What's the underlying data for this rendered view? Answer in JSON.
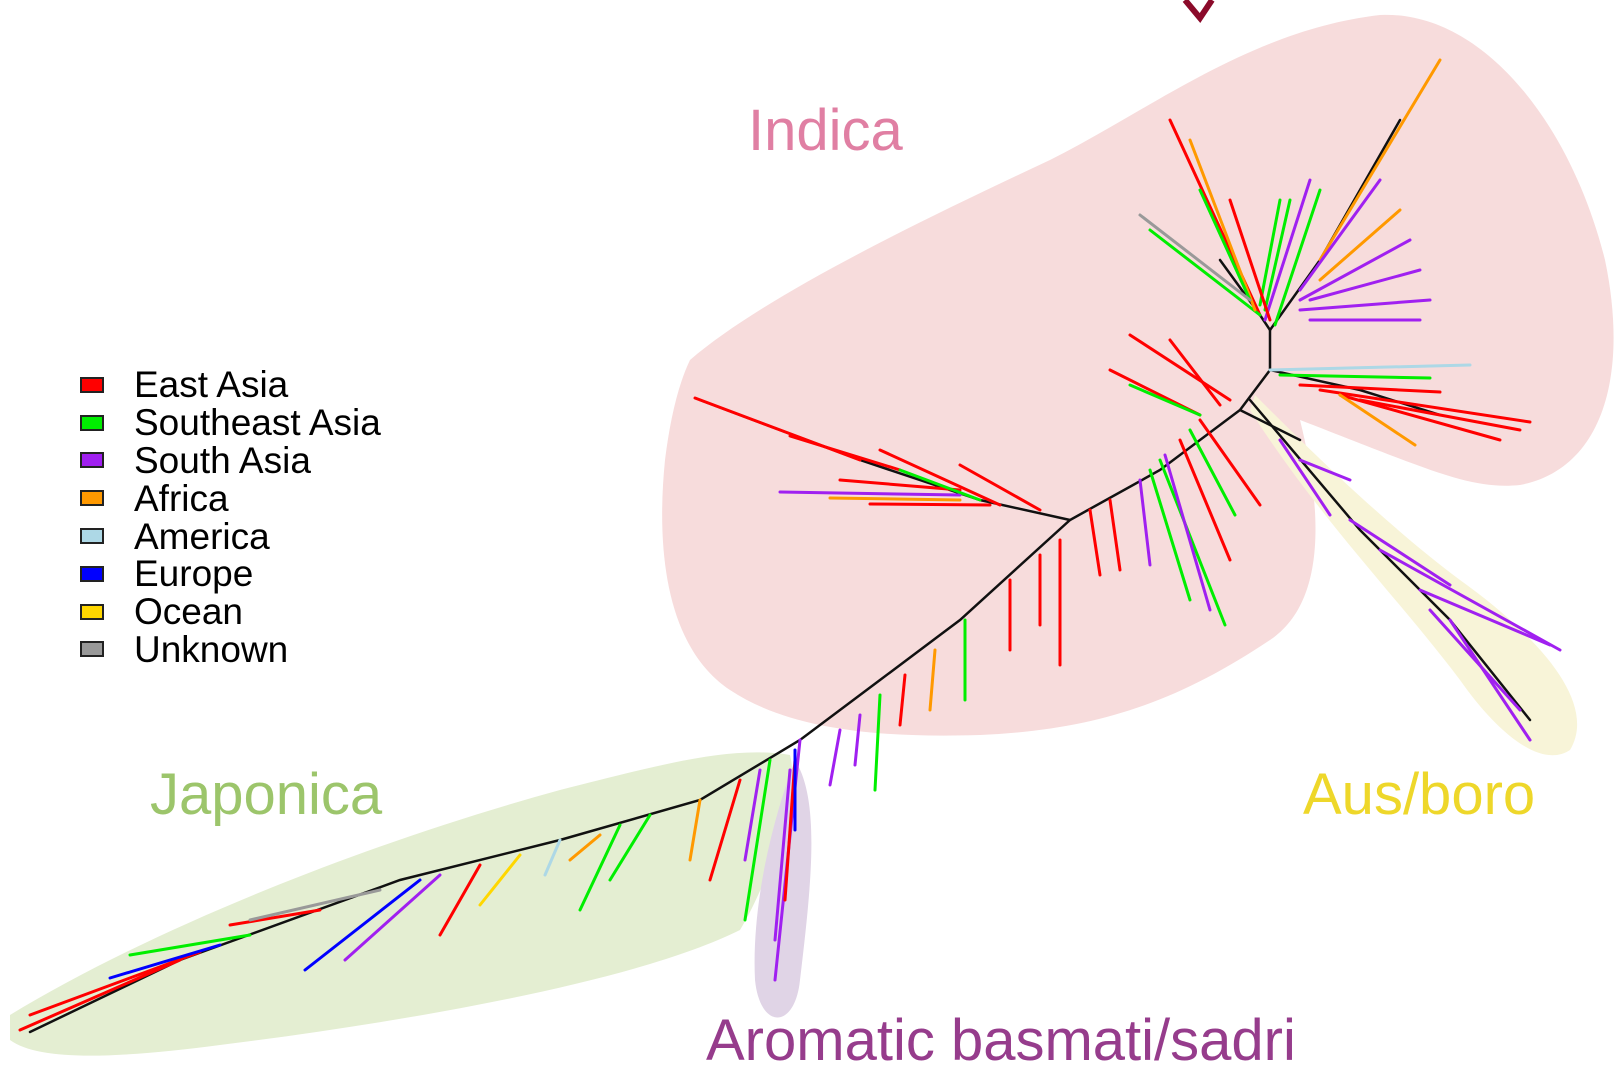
{
  "legend": {
    "items": [
      {
        "label": "East Asia",
        "color": "#ff0000"
      },
      {
        "label": "Southeast Asia",
        "color": "#00ee00"
      },
      {
        "label": "South Asia",
        "color": "#a020f0"
      },
      {
        "label": "Africa",
        "color": "#ff9900"
      },
      {
        "label": "America",
        "color": "#add8e6"
      },
      {
        "label": "Europe",
        "color": "#0000ff"
      },
      {
        "label": "Ocean",
        "color": "#ffd700"
      },
      {
        "label": "Unknown",
        "color": "#999999"
      }
    ]
  },
  "clades": {
    "indica": {
      "label": "Indica",
      "color": "#e07fa3",
      "fill": "#f7dcdc"
    },
    "japonica": {
      "label": "Japonica",
      "color": "#9cc56b",
      "fill": "#e4eed2"
    },
    "aus": {
      "label": "Aus/boro",
      "color": "#eed72a",
      "fill": "#f8f4d8"
    },
    "aromatic": {
      "label": "Aromatic basmati/sadri",
      "color": "#963c8c",
      "fill": "#e0d4e6"
    }
  },
  "colors": {
    "branch": "#111111",
    "title_fragment": "#8b0a2a"
  }
}
